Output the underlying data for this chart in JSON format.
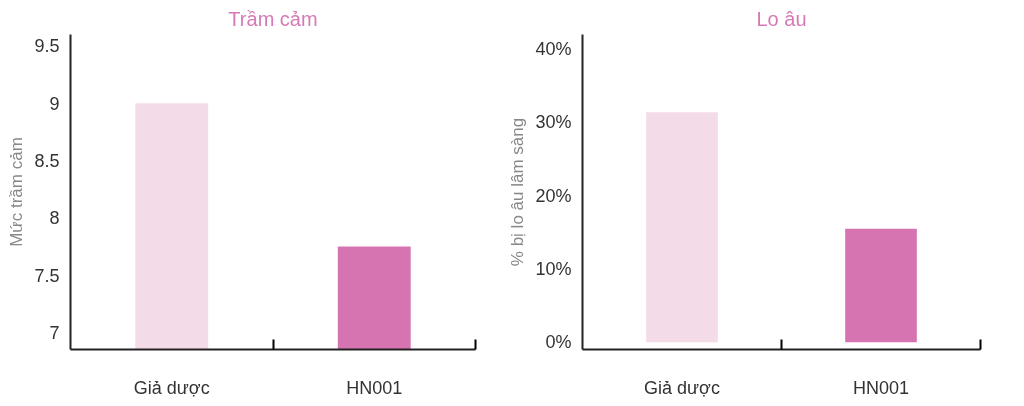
{
  "chart_data": [
    {
      "type": "bar",
      "title": "Trầm cảm",
      "ylabel": "Mức trầm cảm",
      "categories": [
        "Giả dược",
        "HN001"
      ],
      "values": [
        9.0,
        7.75
      ],
      "colors": [
        "#f4dbe8",
        "#d673b1"
      ],
      "ylim": [
        6.85,
        9.6
      ],
      "yticks": [
        7,
        7.5,
        8,
        8.5,
        9,
        9.5
      ],
      "grid": false
    },
    {
      "type": "bar",
      "title": "Lo âu",
      "ylabel": "% bị lo âu lâm sàng",
      "categories": [
        "Giả dược",
        "HN001"
      ],
      "values": [
        31.4,
        15.5
      ],
      "colors": [
        "#f4dbe8",
        "#d673b1"
      ],
      "ylim": [
        -1,
        42
      ],
      "yticks": [
        {
          "value": 0,
          "label": "0%"
        },
        {
          "value": 10,
          "label": "10%"
        },
        {
          "value": 20,
          "label": "20%"
        },
        {
          "value": 30,
          "label": "30%"
        },
        {
          "value": 40,
          "label": "40%"
        }
      ],
      "grid": false
    }
  ]
}
